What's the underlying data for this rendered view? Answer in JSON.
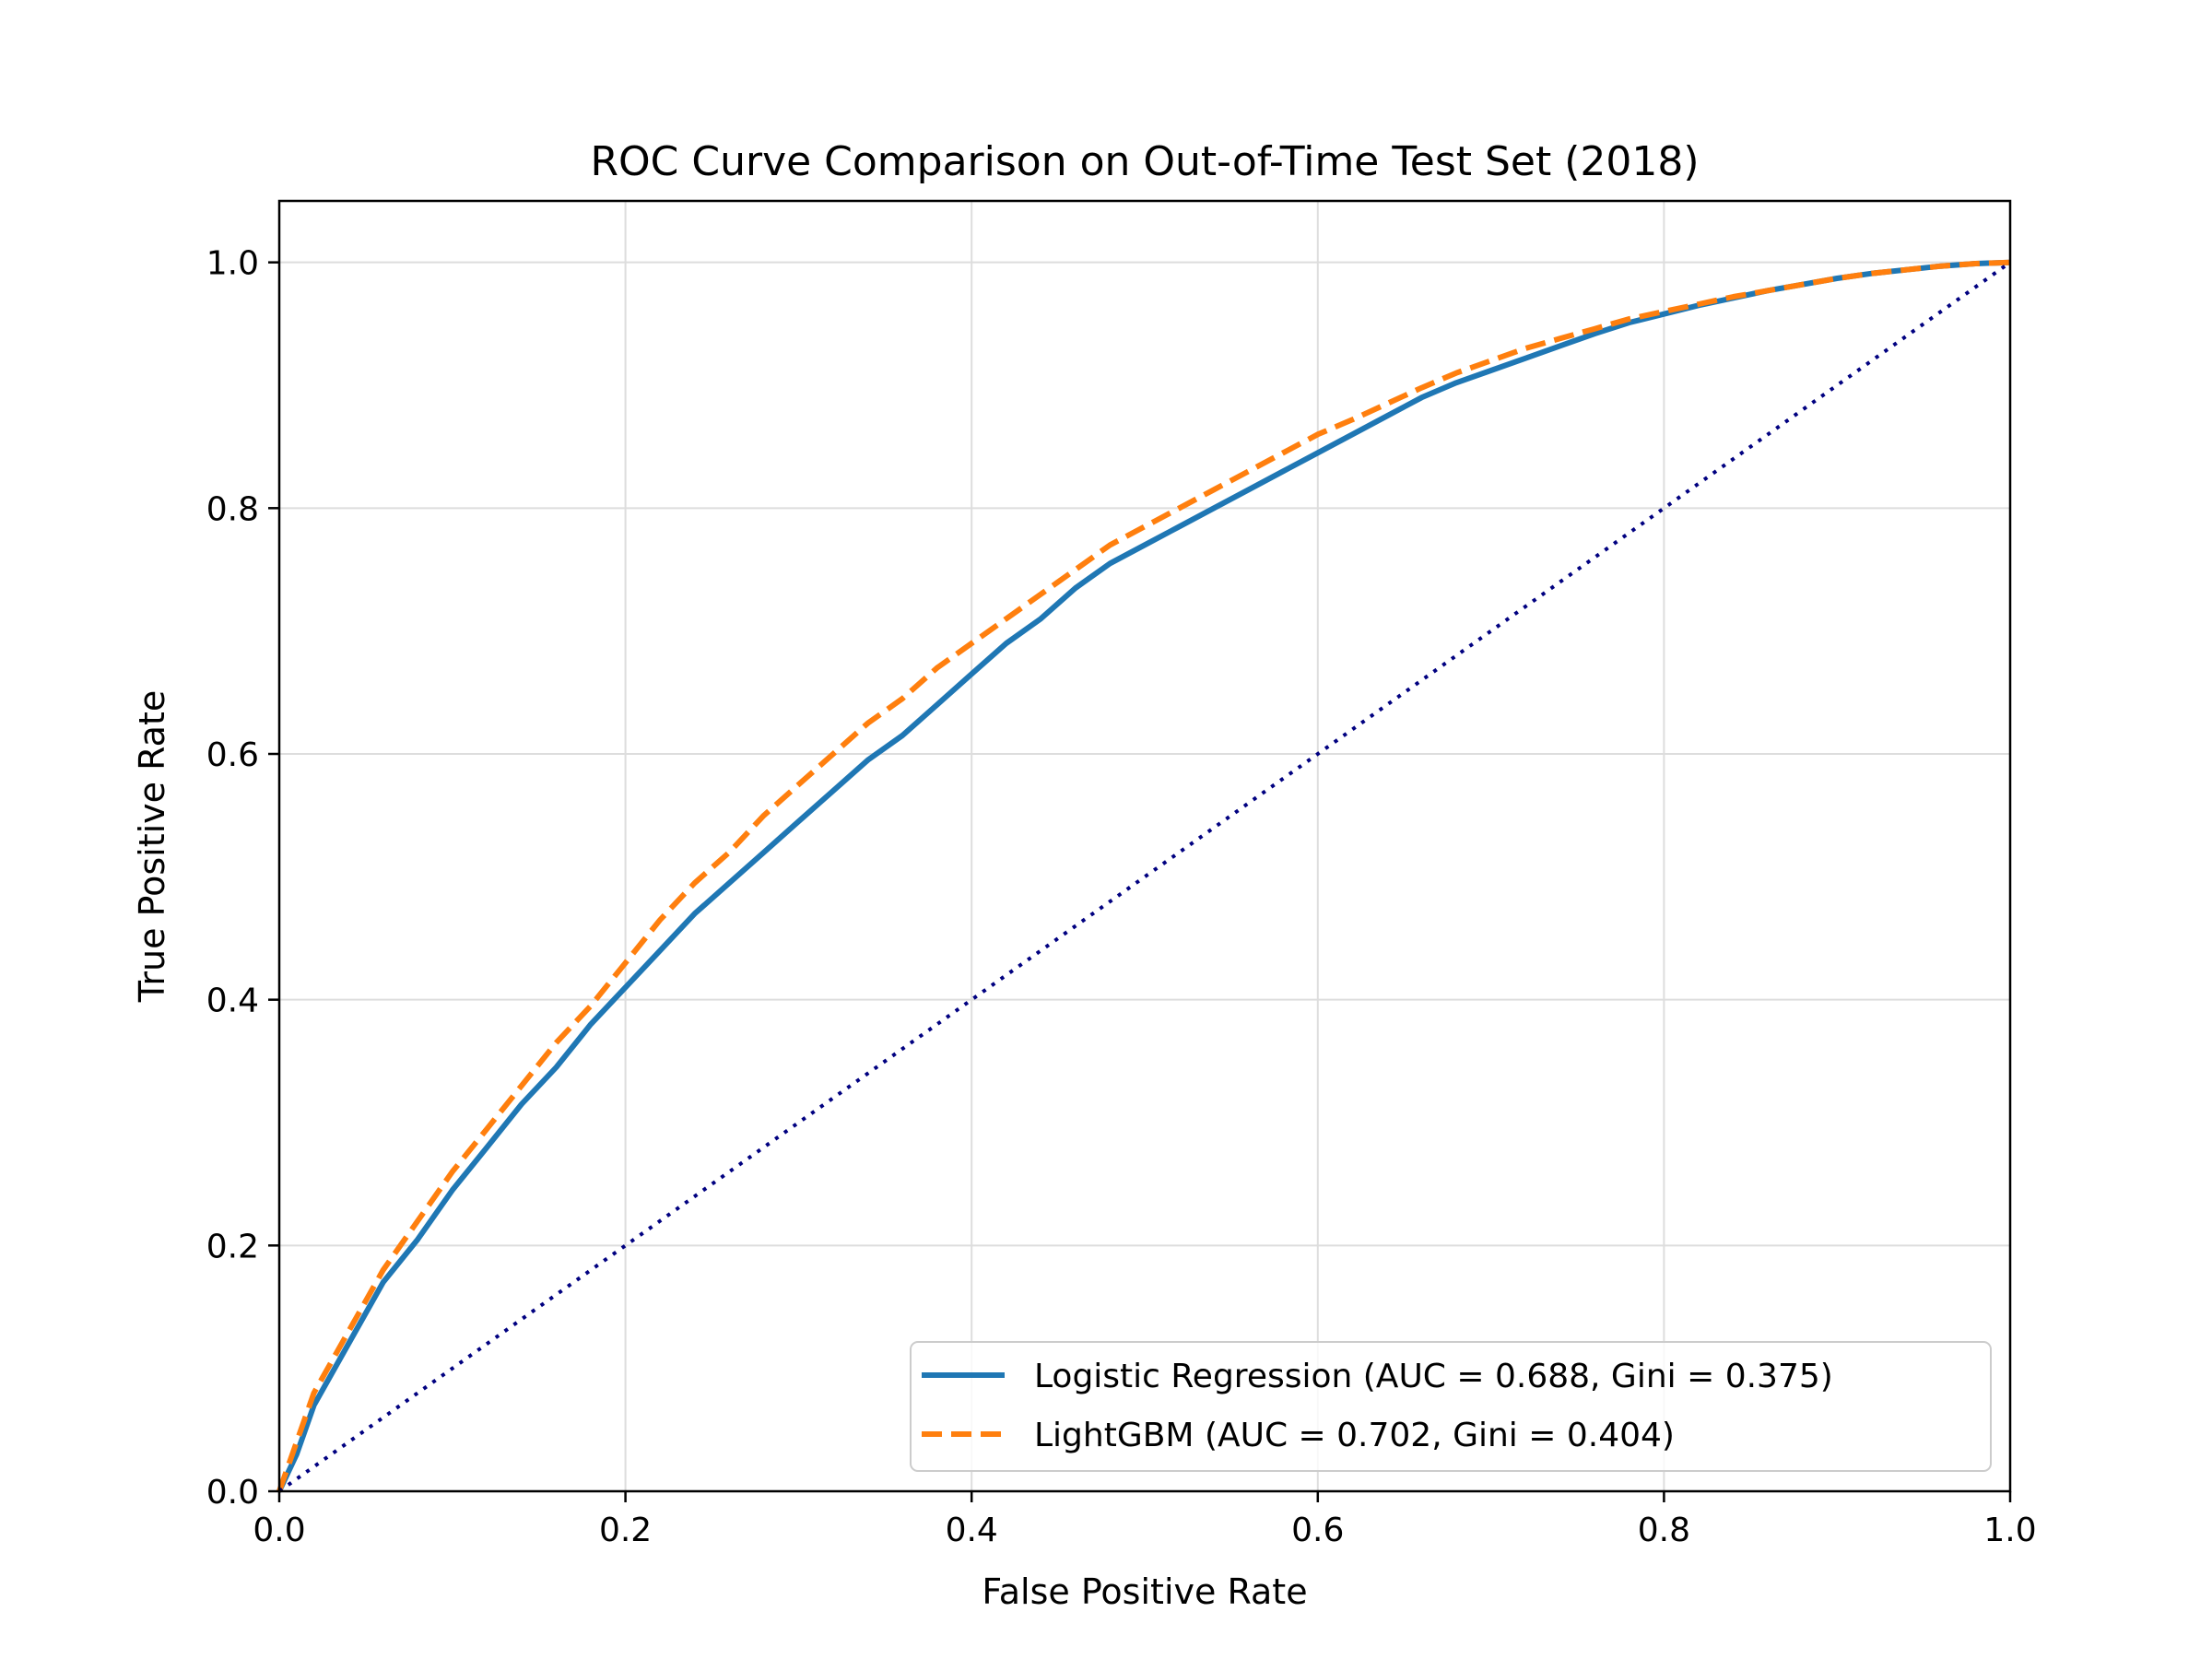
{
  "chart_data": {
    "type": "line",
    "title": "ROC Curve Comparison on Out-of-Time Test Set (2018)",
    "xlabel": "False Positive Rate",
    "ylabel": "True Positive Rate",
    "xlim": [
      0,
      1
    ],
    "ylim": [
      0,
      1.05
    ],
    "grid": true,
    "legend_position": "lower-right",
    "x_ticks": [
      "0.0",
      "0.2",
      "0.4",
      "0.6",
      "0.8",
      "1.0"
    ],
    "y_ticks": [
      "0.0",
      "0.2",
      "0.4",
      "0.6",
      "0.8",
      "1.0"
    ],
    "series": [
      {
        "name": "Logistic Regression (AUC = 0.688, Gini = 0.375)",
        "color": "#1f77b4",
        "style": "solid",
        "x": [
          0,
          0.01,
          0.02,
          0.04,
          0.06,
          0.08,
          0.1,
          0.12,
          0.14,
          0.16,
          0.18,
          0.2,
          0.22,
          0.24,
          0.26,
          0.28,
          0.3,
          0.32,
          0.34,
          0.36,
          0.38,
          0.4,
          0.42,
          0.44,
          0.46,
          0.48,
          0.5,
          0.52,
          0.54,
          0.56,
          0.58,
          0.6,
          0.62,
          0.64,
          0.66,
          0.68,
          0.7,
          0.72,
          0.74,
          0.76,
          0.78,
          0.8,
          0.82,
          0.84,
          0.86,
          0.88,
          0.9,
          0.92,
          0.94,
          0.96,
          0.98,
          1.0
        ],
        "y": [
          0,
          0.03,
          0.07,
          0.12,
          0.17,
          0.205,
          0.245,
          0.28,
          0.315,
          0.345,
          0.38,
          0.41,
          0.44,
          0.47,
          0.495,
          0.52,
          0.545,
          0.57,
          0.595,
          0.615,
          0.64,
          0.665,
          0.69,
          0.71,
          0.735,
          0.755,
          0.77,
          0.785,
          0.8,
          0.815,
          0.83,
          0.845,
          0.86,
          0.875,
          0.89,
          0.902,
          0.912,
          0.922,
          0.932,
          0.942,
          0.951,
          0.958,
          0.965,
          0.971,
          0.977,
          0.982,
          0.987,
          0.991,
          0.994,
          0.997,
          0.999,
          1.0
        ]
      },
      {
        "name": "LightGBM (AUC = 0.702, Gini = 0.404)",
        "color": "#ff7f0e",
        "style": "dashed",
        "x": [
          0,
          0.01,
          0.02,
          0.04,
          0.06,
          0.08,
          0.1,
          0.12,
          0.14,
          0.16,
          0.18,
          0.2,
          0.22,
          0.24,
          0.26,
          0.28,
          0.3,
          0.32,
          0.34,
          0.36,
          0.38,
          0.4,
          0.42,
          0.44,
          0.46,
          0.48,
          0.5,
          0.52,
          0.54,
          0.56,
          0.58,
          0.6,
          0.62,
          0.64,
          0.66,
          0.68,
          0.7,
          0.72,
          0.74,
          0.76,
          0.78,
          0.8,
          0.82,
          0.84,
          0.86,
          0.88,
          0.9,
          0.92,
          0.94,
          0.96,
          0.98,
          1.0
        ],
        "y": [
          0,
          0.04,
          0.08,
          0.13,
          0.18,
          0.22,
          0.26,
          0.295,
          0.33,
          0.365,
          0.395,
          0.43,
          0.465,
          0.495,
          0.52,
          0.55,
          0.575,
          0.6,
          0.625,
          0.645,
          0.67,
          0.69,
          0.71,
          0.73,
          0.75,
          0.77,
          0.785,
          0.8,
          0.815,
          0.83,
          0.845,
          0.86,
          0.872,
          0.885,
          0.898,
          0.91,
          0.92,
          0.93,
          0.938,
          0.946,
          0.954,
          0.96,
          0.966,
          0.972,
          0.977,
          0.982,
          0.987,
          0.991,
          0.994,
          0.997,
          0.999,
          1.0
        ]
      },
      {
        "name": "",
        "color": "#000080",
        "style": "dotted",
        "x": [
          0,
          1
        ],
        "y": [
          0,
          1
        ]
      }
    ]
  }
}
